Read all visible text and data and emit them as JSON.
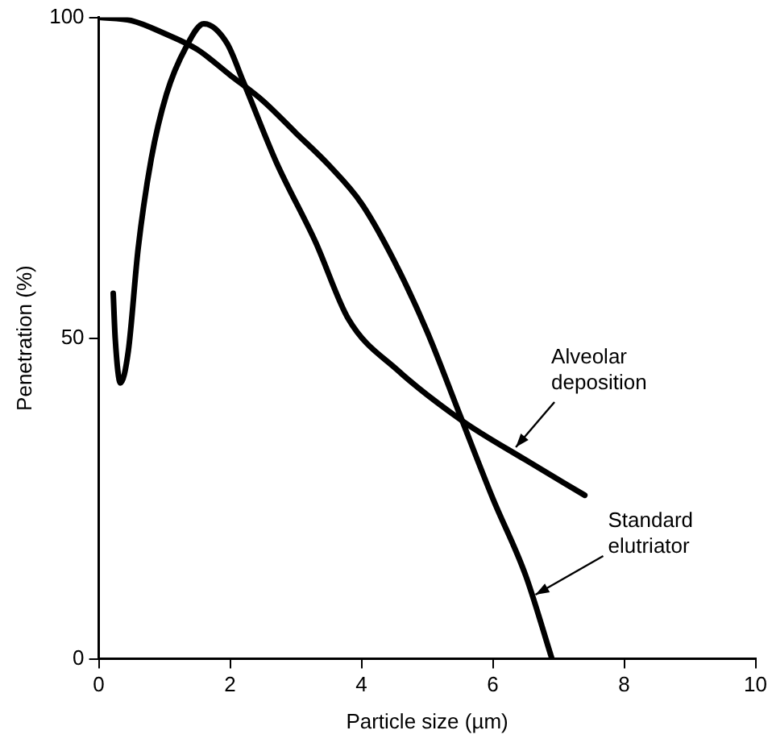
{
  "chart_data": {
    "type": "line",
    "xlabel": "Particle size (µm)",
    "ylabel": "Penetration (%)",
    "xlim": [
      0,
      10
    ],
    "xticks": [
      0,
      2,
      4,
      6,
      8,
      10
    ],
    "ylim": [
      0,
      100
    ],
    "yticks": [
      0,
      50,
      100
    ],
    "grid": false,
    "legend": false,
    "marker": "none",
    "line_style": "solid",
    "series": [
      {
        "color": "#000000",
        "x": [
          0,
          0.5,
          1,
          1.5,
          2,
          2.5,
          3,
          3.5,
          4,
          4.5,
          5,
          5.5,
          6,
          6.5,
          6.9
        ],
        "values": [
          100,
          99.5,
          97.5,
          95,
          91,
          87,
          82,
          77,
          71,
          62,
          51,
          38,
          25,
          13,
          0
        ]
      },
      {
        "color": "#000000",
        "x": [
          0.22,
          0.25,
          0.33,
          0.45,
          0.6,
          0.8,
          1.03,
          1.33,
          1.6,
          1.95,
          2.2,
          2.7,
          3.3,
          3.8,
          4.55,
          5.55,
          6.5,
          7.4
        ],
        "values": [
          57,
          50,
          43,
          48,
          64,
          78,
          88,
          95.4,
          99,
          96,
          90,
          77.5,
          65,
          53,
          45,
          37,
          31,
          25.5
        ]
      }
    ],
    "annotations": [
      {
        "text": "Alveolar deposition",
        "x": 6.35,
        "y": 33
      },
      {
        "text": "Standard elutriator",
        "x": 6.65,
        "y": 10
      }
    ]
  }
}
